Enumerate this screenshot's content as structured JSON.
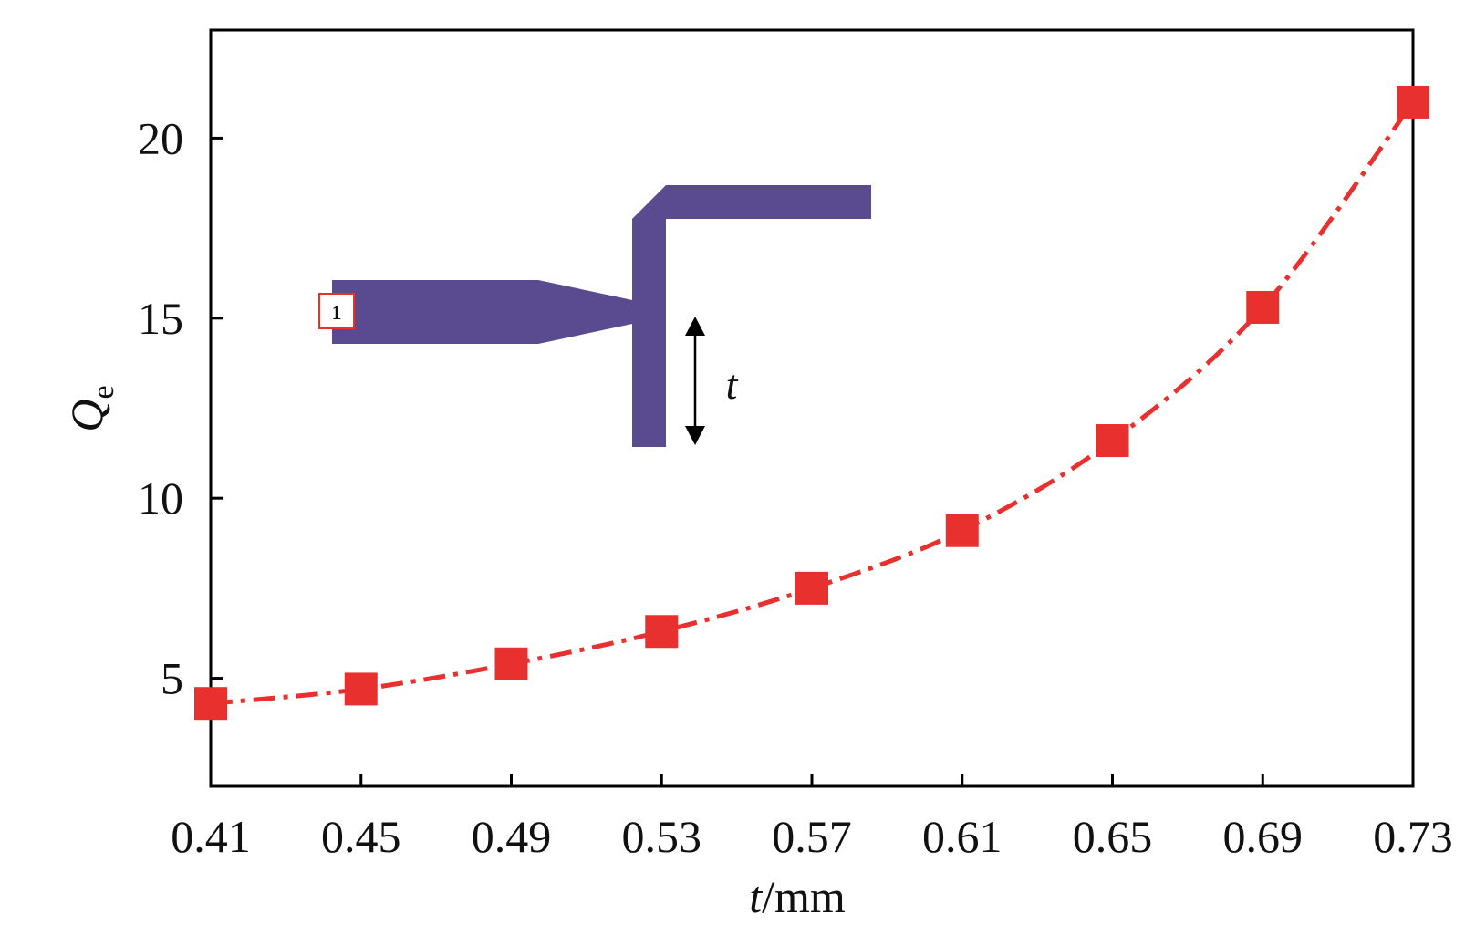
{
  "chart_data": {
    "type": "line",
    "title": "",
    "xlabel": {
      "symbol": "t",
      "unit": "/mm"
    },
    "ylabel": {
      "symbol": "Q",
      "subscript": "e"
    },
    "xlim": [
      0.41,
      0.73
    ],
    "ylim": [
      2.0,
      23.0
    ],
    "xticks": [
      "0.41",
      "0.45",
      "0.49",
      "0.53",
      "0.57",
      "0.61",
      "0.65",
      "0.69",
      "0.73"
    ],
    "yticks": [
      "5",
      "10",
      "15",
      "20"
    ],
    "grid": false,
    "legend": "none",
    "series": [
      {
        "name": "",
        "color": "#e8312f",
        "line_style": "dash-dot",
        "marker": "square",
        "x": [
          0.41,
          0.45,
          0.49,
          0.53,
          0.57,
          0.61,
          0.65,
          0.69,
          0.73
        ],
        "y": [
          4.3,
          4.7,
          5.4,
          6.3,
          7.5,
          9.1,
          11.6,
          15.3,
          21.0
        ]
      }
    ],
    "inset": {
      "description_color": "#5a4a8f",
      "port_label": "1",
      "dimension_label": "t"
    }
  }
}
